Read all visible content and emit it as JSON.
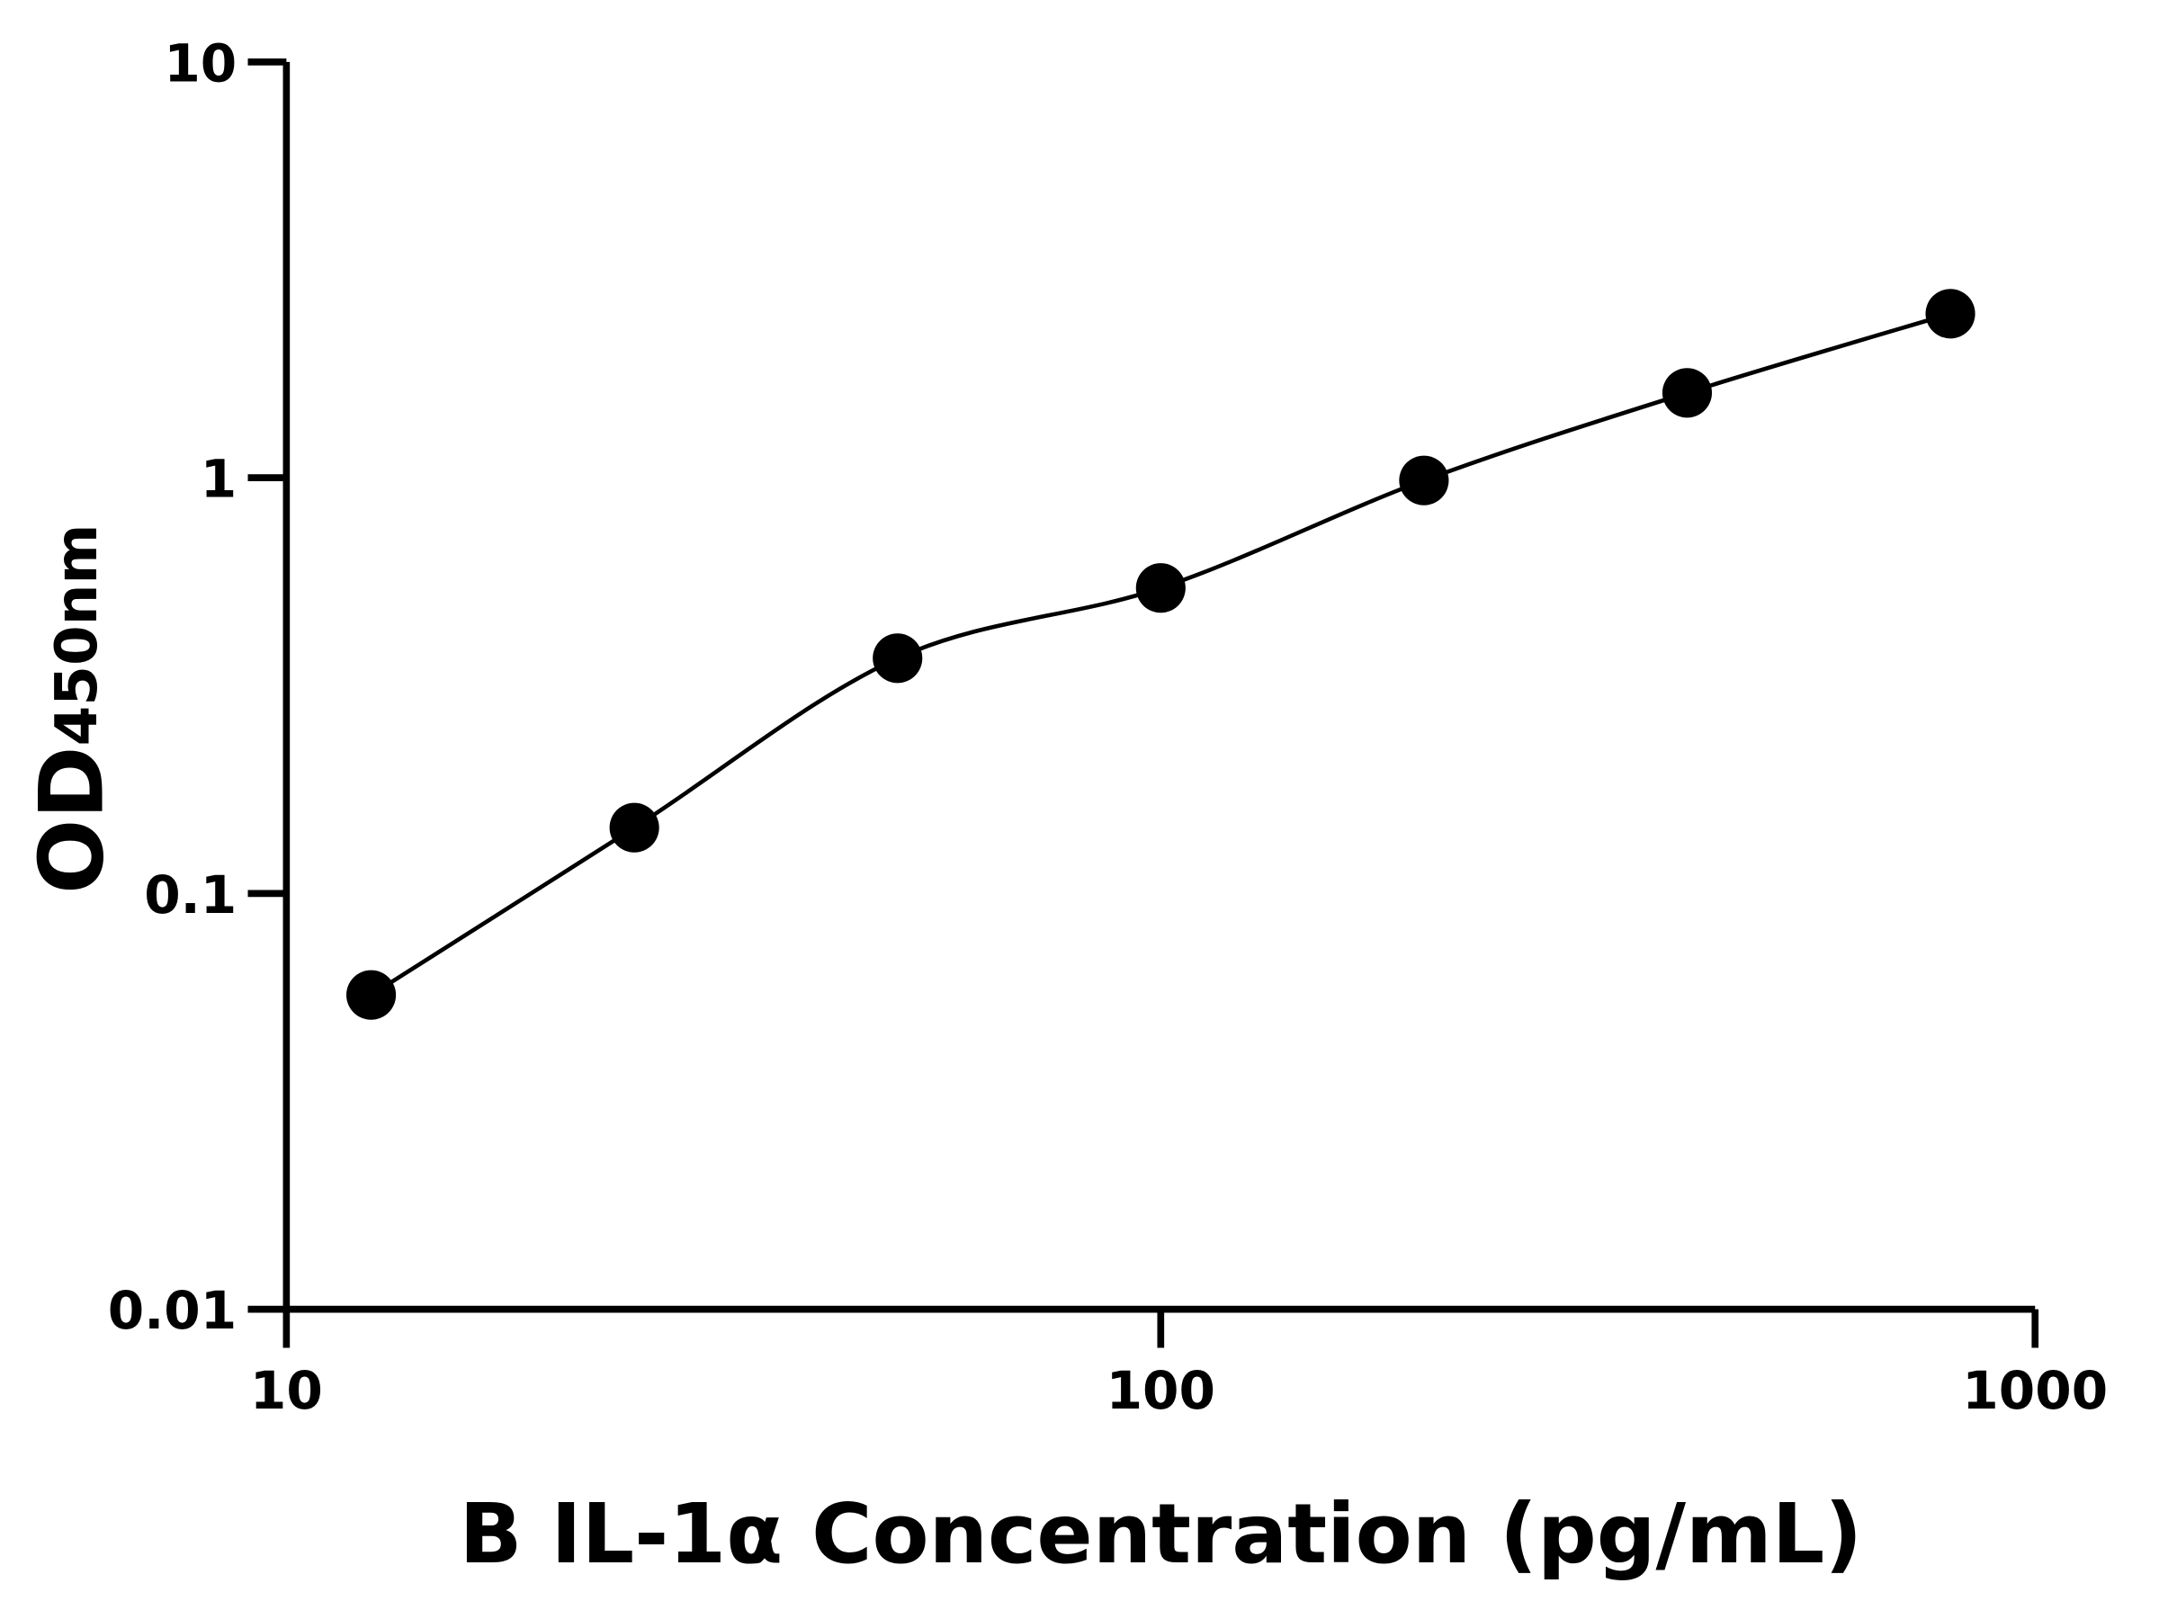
{
  "chart_data": {
    "type": "scatter",
    "title": "",
    "xlabel": "B IL-1α Concentration (pg/mL)",
    "ylabel_main": "OD",
    "ylabel_sub": "450nm",
    "x_scale": "log",
    "y_scale": "log",
    "xlim": [
      10,
      1000
    ],
    "ylim": [
      0.01,
      10
    ],
    "x_ticks": [
      10,
      100,
      1000
    ],
    "x_tick_labels": [
      "10",
      "100",
      "1000"
    ],
    "y_ticks": [
      0.01,
      0.1,
      1,
      10
    ],
    "y_tick_labels": [
      "0.01",
      "0.1",
      "1",
      "10"
    ],
    "grid": false,
    "fit_curve": true,
    "marker_color": "#000000",
    "line_color": "#000000",
    "series": [
      {
        "x": [
          12.5,
          25,
          50,
          100,
          200,
          400,
          800
        ],
        "y": [
          0.057,
          0.144,
          0.368,
          0.543,
          0.985,
          1.6,
          2.48
        ]
      }
    ]
  }
}
